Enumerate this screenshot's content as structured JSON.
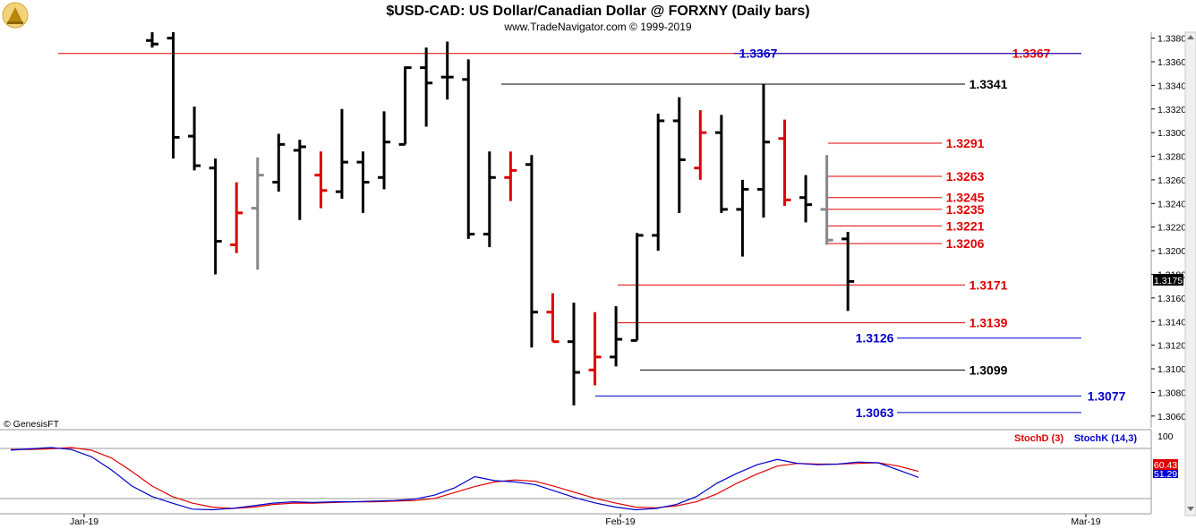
{
  "chart_data": {
    "type": "ohlc",
    "title": "$USD-CAD:  US Dollar/Canadian Dollar @ FORXNY  (Daily bars)",
    "subtitle": "www.TradeNavigator.com © 1999-2019",
    "copyright": "© GenesisFT",
    "ylim": [
      1.305,
      1.3385
    ],
    "y_ticks": [
      "1.3380",
      "1.3360",
      "1.3340",
      "1.3320",
      "1.3300",
      "1.3280",
      "1.3260",
      "1.3240",
      "1.3220",
      "1.3200",
      "1.3180",
      "1.3160",
      "1.3140",
      "1.3120",
      "1.3100",
      "1.3080",
      "1.3060"
    ],
    "x_labels": [
      "Jan-19",
      "Feb-19",
      "Mar-19"
    ],
    "last_price": "1.3175",
    "colors": {
      "up": "#000000",
      "down": "#e00000",
      "flat": "#888888",
      "stochD": "#e00000",
      "stochK": "#0000cc",
      "price_tag_bg": "#000000"
    },
    "bars": [
      {
        "o": 1.3378,
        "h": 1.3385,
        "l": 1.3372,
        "c": 1.3375,
        "color": "black"
      },
      {
        "o": 1.338,
        "h": 1.3385,
        "l": 1.3278,
        "c": 1.3296,
        "color": "black"
      },
      {
        "o": 1.3297,
        "h": 1.3322,
        "l": 1.3268,
        "c": 1.3272,
        "color": "black"
      },
      {
        "o": 1.327,
        "h": 1.3278,
        "l": 1.318,
        "c": 1.3208,
        "color": "black"
      },
      {
        "o": 1.3205,
        "h": 1.3258,
        "l": 1.3198,
        "c": 1.3232,
        "color": "red"
      },
      {
        "o": 1.3236,
        "h": 1.3279,
        "l": 1.3184,
        "c": 1.3264,
        "color": "gray"
      },
      {
        "o": 1.3258,
        "h": 1.3299,
        "l": 1.325,
        "c": 1.329,
        "color": "black"
      },
      {
        "o": 1.3285,
        "h": 1.3294,
        "l": 1.3226,
        "c": 1.3288,
        "color": "black"
      },
      {
        "o": 1.3264,
        "h": 1.3284,
        "l": 1.3236,
        "c": 1.3251,
        "color": "red"
      },
      {
        "o": 1.325,
        "h": 1.332,
        "l": 1.3244,
        "c": 1.3275,
        "color": "black"
      },
      {
        "o": 1.3275,
        "h": 1.3284,
        "l": 1.3232,
        "c": 1.3258,
        "color": "black"
      },
      {
        "o": 1.3262,
        "h": 1.3318,
        "l": 1.3252,
        "c": 1.3292,
        "color": "black"
      },
      {
        "o": 1.329,
        "h": 1.3356,
        "l": 1.329,
        "c": 1.3355,
        "color": "black"
      },
      {
        "o": 1.3355,
        "h": 1.3372,
        "l": 1.3305,
        "c": 1.3342,
        "color": "black"
      },
      {
        "o": 1.3347,
        "h": 1.3377,
        "l": 1.3328,
        "c": 1.3347,
        "color": "black"
      },
      {
        "o": 1.3345,
        "h": 1.3362,
        "l": 1.321,
        "c": 1.3214,
        "color": "black"
      },
      {
        "o": 1.3214,
        "h": 1.3284,
        "l": 1.3203,
        "c": 1.3262,
        "color": "black"
      },
      {
        "o": 1.3262,
        "h": 1.3284,
        "l": 1.3242,
        "c": 1.3268,
        "color": "red"
      },
      {
        "o": 1.3273,
        "h": 1.3281,
        "l": 1.3118,
        "c": 1.3148,
        "color": "black"
      },
      {
        "o": 1.3148,
        "h": 1.3164,
        "l": 1.3123,
        "c": 1.3123,
        "color": "red"
      },
      {
        "o": 1.3123,
        "h": 1.3156,
        "l": 1.3069,
        "c": 1.3097,
        "color": "black"
      },
      {
        "o": 1.3099,
        "h": 1.3148,
        "l": 1.3086,
        "c": 1.311,
        "color": "red"
      },
      {
        "o": 1.311,
        "h": 1.3153,
        "l": 1.3102,
        "c": 1.3125,
        "color": "black"
      },
      {
        "o": 1.3124,
        "h": 1.3215,
        "l": 1.3124,
        "c": 1.3213,
        "color": "black"
      },
      {
        "o": 1.3213,
        "h": 1.3316,
        "l": 1.32,
        "c": 1.331,
        "color": "black"
      },
      {
        "o": 1.331,
        "h": 1.333,
        "l": 1.3232,
        "c": 1.3277,
        "color": "black"
      },
      {
        "o": 1.327,
        "h": 1.3319,
        "l": 1.326,
        "c": 1.33,
        "color": "red"
      },
      {
        "o": 1.33,
        "h": 1.3315,
        "l": 1.3232,
        "c": 1.3235,
        "color": "black"
      },
      {
        "o": 1.3235,
        "h": 1.326,
        "l": 1.3195,
        "c": 1.3252,
        "color": "black"
      },
      {
        "o": 1.3252,
        "h": 1.3341,
        "l": 1.3228,
        "c": 1.3292,
        "color": "black"
      },
      {
        "o": 1.3295,
        "h": 1.3311,
        "l": 1.3238,
        "c": 1.3243,
        "color": "red"
      },
      {
        "o": 1.3245,
        "h": 1.3264,
        "l": 1.3224,
        "c": 1.3239,
        "color": "black"
      },
      {
        "o": 1.3235,
        "h": 1.3281,
        "l": 1.3205,
        "c": 1.3209,
        "color": "gray"
      },
      {
        "o": 1.321,
        "h": 1.3216,
        "l": 1.3149,
        "c": 1.3174,
        "color": "black"
      }
    ],
    "levels": [
      {
        "value": 1.3367,
        "label": "1.3367",
        "line_color": "#e00000",
        "label_color": "#e00000"
      },
      {
        "value": 1.3367,
        "label": "1.3367",
        "line_color": "#0000cc",
        "label_color": "#0000cc"
      },
      {
        "value": 1.3341,
        "label": "1.3341",
        "line_color": "#000000",
        "label_color": "#000000"
      },
      {
        "value": 1.3291,
        "label": "1.3291",
        "line_color": "#e00000",
        "label_color": "#e00000"
      },
      {
        "value": 1.3263,
        "label": "1.3263",
        "line_color": "#e00000",
        "label_color": "#e00000"
      },
      {
        "value": 1.3245,
        "label": "1.3245",
        "line_color": "#e00000",
        "label_color": "#e00000"
      },
      {
        "value": 1.3235,
        "label": "1.3235",
        "line_color": "#e00000",
        "label_color": "#e00000"
      },
      {
        "value": 1.3221,
        "label": "1.3221",
        "line_color": "#e00000",
        "label_color": "#e00000"
      },
      {
        "value": 1.3206,
        "label": "1.3206",
        "line_color": "#e00000",
        "label_color": "#e00000"
      },
      {
        "value": 1.3171,
        "label": "1.3171",
        "line_color": "#e00000",
        "label_color": "#e00000"
      },
      {
        "value": 1.3139,
        "label": "1.3139",
        "line_color": "#e00000",
        "label_color": "#e00000"
      },
      {
        "value": 1.3126,
        "label": "1.3126",
        "line_color": "#0000cc",
        "label_color": "#0000cc"
      },
      {
        "value": 1.3099,
        "label": "1.3099",
        "line_color": "#000000",
        "label_color": "#000000"
      },
      {
        "value": 1.3077,
        "label": "1.3077",
        "line_color": "#0000cc",
        "label_color": "#0000cc"
      },
      {
        "value": 1.3063,
        "label": "1.3063",
        "line_color": "#0000cc",
        "label_color": "#0000cc"
      }
    ],
    "stochastic": {
      "legend_d": "StochD (3)",
      "legend_k": "StochK (14,3)",
      "top_label": "100",
      "ylim": [
        0,
        100
      ],
      "tag_d": "60.43",
      "tag_k": "51.29",
      "stochK": [
        92,
        94,
        96,
        93,
        82,
        62,
        38,
        22,
        12,
        3,
        2,
        4,
        8,
        12,
        14,
        13,
        14,
        14,
        15,
        16,
        18,
        24,
        35,
        52,
        46,
        44,
        40,
        30,
        20,
        12,
        6,
        2,
        4,
        10,
        22,
        42,
        57,
        70,
        78,
        72,
        70,
        71,
        74,
        73,
        62,
        51
      ],
      "stochD": [
        93,
        93,
        94,
        96,
        92,
        80,
        60,
        38,
        22,
        12,
        6,
        4,
        6,
        10,
        12,
        12,
        13,
        14,
        14,
        15,
        16,
        19,
        28,
        37,
        44,
        47,
        45,
        37,
        28,
        19,
        12,
        6,
        5,
        8,
        14,
        26,
        42,
        56,
        68,
        72,
        71,
        71,
        72,
        73,
        68,
        60
      ]
    }
  }
}
